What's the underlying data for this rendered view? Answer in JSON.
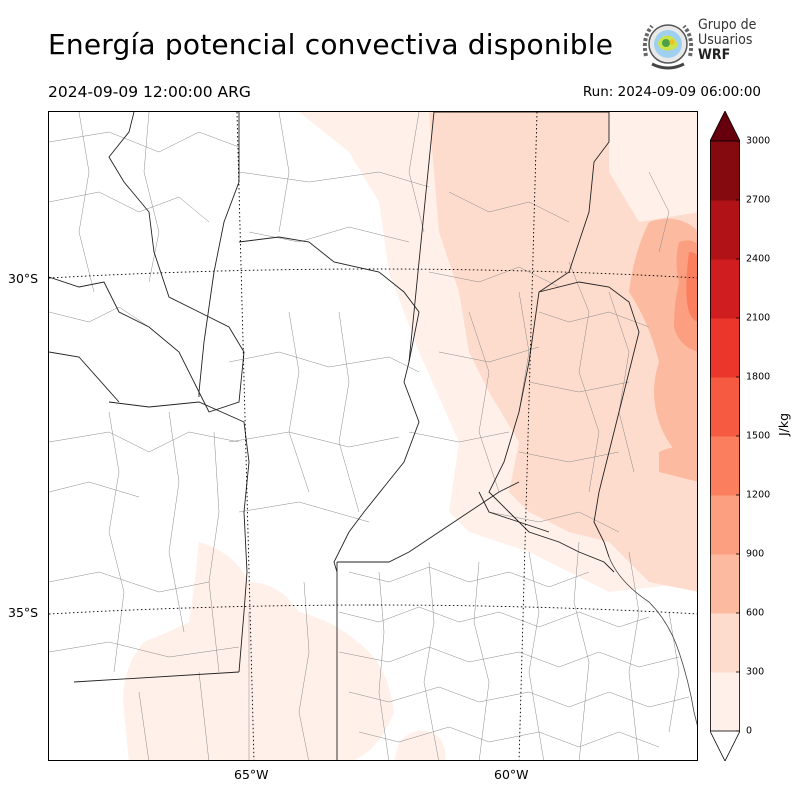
{
  "title": "Energía potencial convectiva disponible",
  "valid_time": "2024-09-09 12:00:00 ARG",
  "run_time": "Run: 2024-09-09 06:00:00",
  "logo": {
    "line1": "Grupo de",
    "line2": "Usuarios",
    "line3": "WRF"
  },
  "map": {
    "lat_labels": [
      "30°S",
      "35°S"
    ],
    "lon_labels": [
      "65°W",
      "60°W"
    ]
  },
  "colorbar": {
    "unit": "J/kg",
    "ticks": [
      "0",
      "300",
      "600",
      "900",
      "1200",
      "1500",
      "1800",
      "2100",
      "2400",
      "2700",
      "3000"
    ],
    "colors": [
      "#fff0ea",
      "#fedccd",
      "#fcbba0",
      "#fc9f80",
      "#fb7f5f",
      "#f65b42",
      "#eb372b",
      "#d01d1f",
      "#b01217",
      "#850a0f"
    ],
    "over_color": "#67000d",
    "under_color": "#ffffff"
  }
}
